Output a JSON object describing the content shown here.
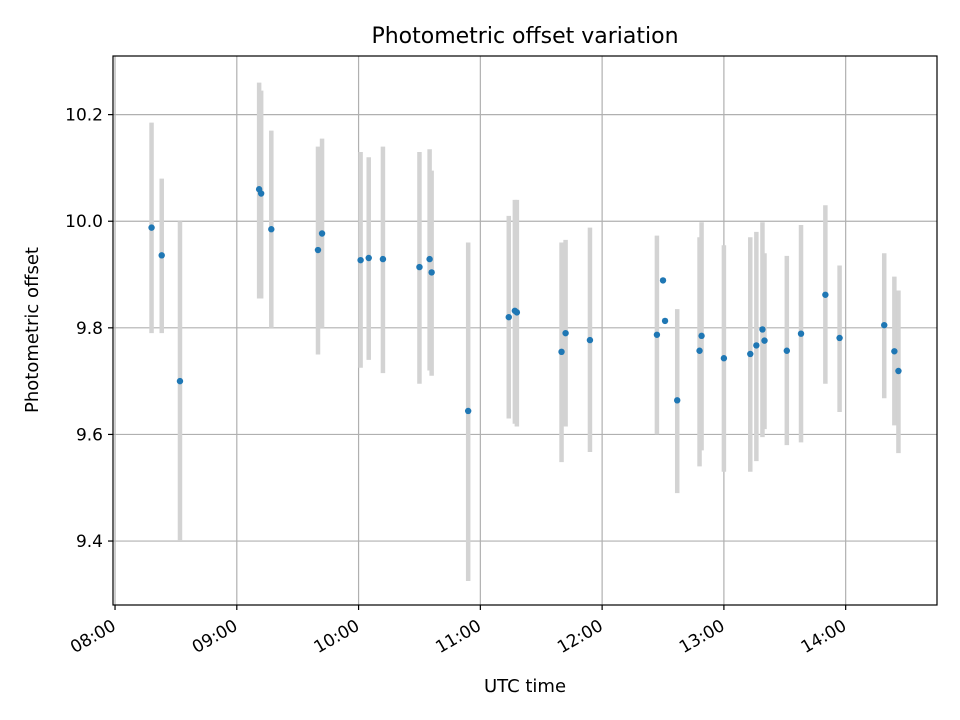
{
  "chart_data": {
    "type": "scatter",
    "title": "Photometric offset variation",
    "xlabel": "UTC time",
    "ylabel": "Photometric offset",
    "x_ticks": [
      "08:00",
      "09:00",
      "10:00",
      "11:00",
      "12:00",
      "13:00",
      "14:00"
    ],
    "y_ticks": [
      "9.4",
      "9.6",
      "9.8",
      "10.0",
      "10.2"
    ],
    "xlim": [
      "07:59",
      "14:45"
    ],
    "ylim": [
      9.28,
      10.31
    ],
    "grid": true,
    "colors": {
      "point": "#1f77b4",
      "errorbar": "#d3d3d3",
      "grid": "#b0b0b0"
    },
    "points": [
      {
        "t": "08:18",
        "y": 9.988,
        "lo": 9.79,
        "hi": 10.185
      },
      {
        "t": "08:23",
        "y": 9.936,
        "lo": 9.79,
        "hi": 10.08
      },
      {
        "t": "08:32",
        "y": 9.7,
        "lo": 9.4,
        "hi": 10.0
      },
      {
        "t": "09:11",
        "y": 10.06,
        "lo": 9.855,
        "hi": 10.26
      },
      {
        "t": "09:12",
        "y": 10.052,
        "lo": 9.855,
        "hi": 10.245
      },
      {
        "t": "09:17",
        "y": 9.985,
        "lo": 9.8,
        "hi": 10.17
      },
      {
        "t": "09:40",
        "y": 9.946,
        "lo": 9.75,
        "hi": 10.14
      },
      {
        "t": "09:42",
        "y": 9.977,
        "lo": 9.8,
        "hi": 10.155
      },
      {
        "t": "10:01",
        "y": 9.927,
        "lo": 9.725,
        "hi": 10.13
      },
      {
        "t": "10:05",
        "y": 9.931,
        "lo": 9.74,
        "hi": 10.12
      },
      {
        "t": "10:12",
        "y": 9.929,
        "lo": 9.715,
        "hi": 10.14
      },
      {
        "t": "10:30",
        "y": 9.914,
        "lo": 9.695,
        "hi": 10.13
      },
      {
        "t": "10:35",
        "y": 9.929,
        "lo": 9.72,
        "hi": 10.135
      },
      {
        "t": "10:36",
        "y": 9.904,
        "lo": 9.71,
        "hi": 10.095
      },
      {
        "t": "10:54",
        "y": 9.644,
        "lo": 9.325,
        "hi": 9.96
      },
      {
        "t": "11:14",
        "y": 9.82,
        "lo": 9.63,
        "hi": 10.01
      },
      {
        "t": "11:17",
        "y": 9.832,
        "lo": 9.62,
        "hi": 10.04
      },
      {
        "t": "11:18",
        "y": 9.829,
        "lo": 9.615,
        "hi": 10.04
      },
      {
        "t": "11:40",
        "y": 9.755,
        "lo": 9.548,
        "hi": 9.96
      },
      {
        "t": "11:42",
        "y": 9.79,
        "lo": 9.615,
        "hi": 9.965
      },
      {
        "t": "11:54",
        "y": 9.777,
        "lo": 9.567,
        "hi": 9.988
      },
      {
        "t": "12:27",
        "y": 9.787,
        "lo": 9.6,
        "hi": 9.973
      },
      {
        "t": "12:30",
        "y": 9.889,
        "lo": 9.889,
        "hi": 9.889
      },
      {
        "t": "12:31",
        "y": 9.813,
        "lo": 9.813,
        "hi": 9.813
      },
      {
        "t": "12:37",
        "y": 9.664,
        "lo": 9.49,
        "hi": 9.835
      },
      {
        "t": "12:48",
        "y": 9.757,
        "lo": 9.54,
        "hi": 9.97
      },
      {
        "t": "12:49",
        "y": 9.785,
        "lo": 9.57,
        "hi": 9.998
      },
      {
        "t": "13:00",
        "y": 9.743,
        "lo": 9.53,
        "hi": 9.955
      },
      {
        "t": "13:13",
        "y": 9.751,
        "lo": 9.53,
        "hi": 9.97
      },
      {
        "t": "13:16",
        "y": 9.767,
        "lo": 9.55,
        "hi": 9.98
      },
      {
        "t": "13:19",
        "y": 9.797,
        "lo": 9.595,
        "hi": 9.998
      },
      {
        "t": "13:20",
        "y": 9.776,
        "lo": 9.61,
        "hi": 9.94
      },
      {
        "t": "13:31",
        "y": 9.757,
        "lo": 9.58,
        "hi": 9.935
      },
      {
        "t": "13:38",
        "y": 9.789,
        "lo": 9.585,
        "hi": 9.993
      },
      {
        "t": "13:50",
        "y": 9.862,
        "lo": 9.695,
        "hi": 10.03
      },
      {
        "t": "13:57",
        "y": 9.781,
        "lo": 9.642,
        "hi": 9.917
      },
      {
        "t": "14:19",
        "y": 9.805,
        "lo": 9.668,
        "hi": 9.94
      },
      {
        "t": "14:24",
        "y": 9.756,
        "lo": 9.617,
        "hi": 9.896
      },
      {
        "t": "14:26",
        "y": 9.719,
        "lo": 9.565,
        "hi": 9.87
      }
    ]
  }
}
